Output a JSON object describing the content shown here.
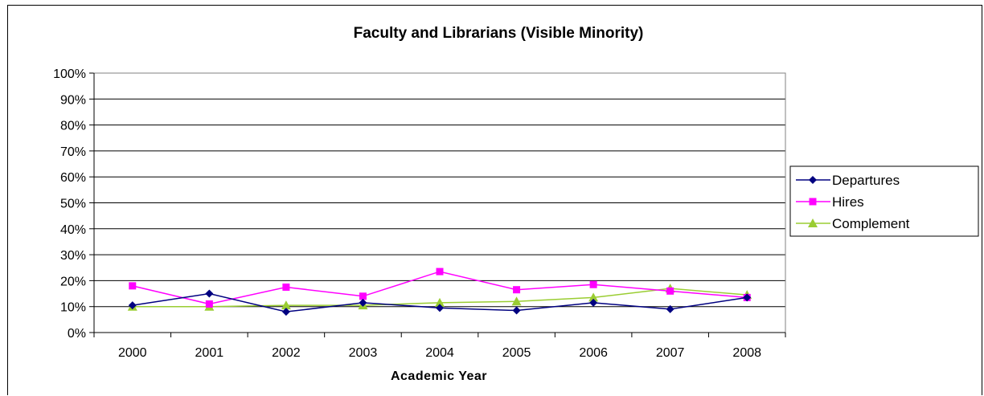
{
  "chart_data": {
    "type": "line",
    "title": "Faculty and Librarians (Visible Minority)",
    "xlabel": "Academic Year",
    "ylabel": "",
    "categories": [
      "2000",
      "2001",
      "2002",
      "2003",
      "2004",
      "2005",
      "2006",
      "2007",
      "2008"
    ],
    "yticks": [
      "0%",
      "10%",
      "20%",
      "30%",
      "40%",
      "50%",
      "60%",
      "70%",
      "80%",
      "90%",
      "100%"
    ],
    "ylim": [
      0,
      100
    ],
    "grid": true,
    "legend_position": "right",
    "series": [
      {
        "name": "Departures",
        "color": "#000080",
        "marker": "diamond",
        "values": [
          10.5,
          15,
          8,
          11.5,
          9.5,
          8.5,
          11.5,
          9,
          13.5
        ]
      },
      {
        "name": "Hires",
        "color": "#ff00ff",
        "marker": "square",
        "values": [
          18,
          11,
          17.5,
          14,
          23.5,
          16.5,
          18.5,
          16,
          13.5
        ]
      },
      {
        "name": "Complement",
        "color": "#9acd32",
        "marker": "triangle",
        "values": [
          10,
          10,
          10.5,
          10.5,
          11.5,
          12,
          13.5,
          17,
          14.5
        ]
      }
    ]
  }
}
